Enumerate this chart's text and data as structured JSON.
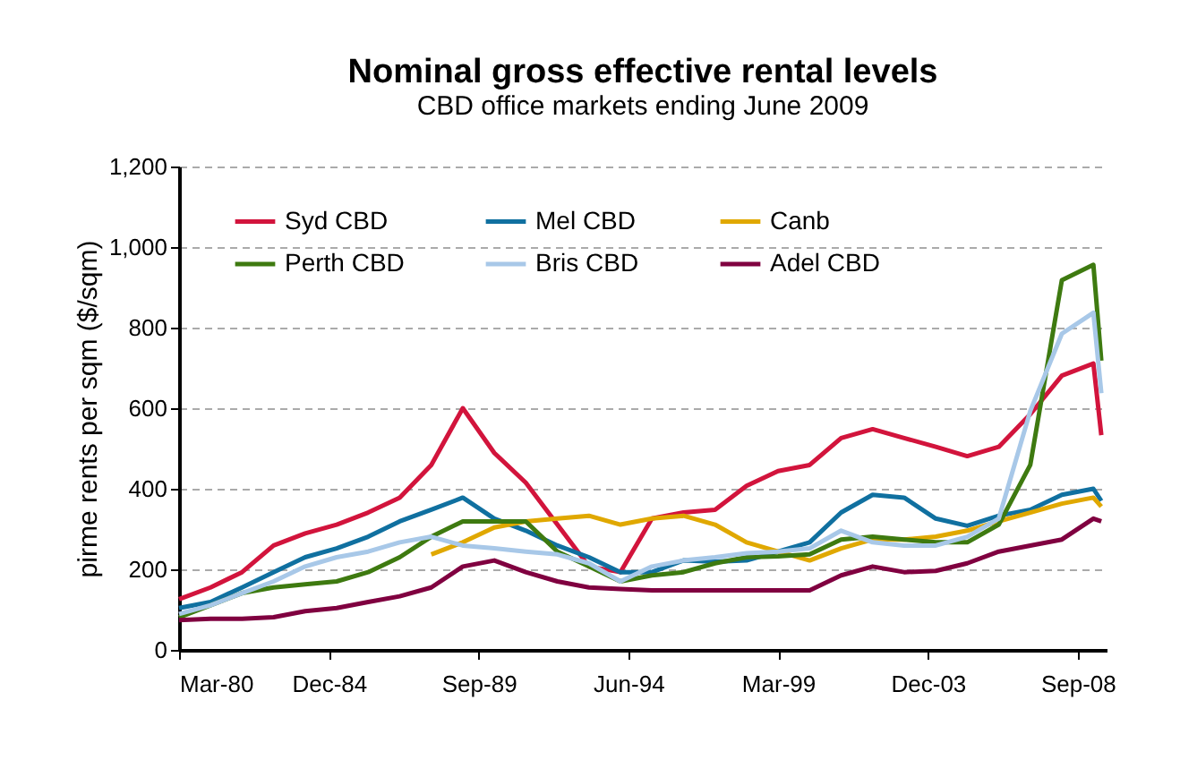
{
  "chart_data": {
    "type": "line",
    "title": "Nominal gross effective  rental levels",
    "subtitle": "CBD office markets ending June 2009",
    "ylabel": "pirme rents per sqm ($/sqm)",
    "x": [
      "1980-03",
      "1981-03",
      "1982-03",
      "1983-03",
      "1984-03",
      "1985-03",
      "1986-03",
      "1987-03",
      "1988-03",
      "1989-03",
      "1990-03",
      "1991-03",
      "1992-03",
      "1993-03",
      "1994-03",
      "1995-03",
      "1996-03",
      "1997-03",
      "1998-03",
      "1999-03",
      "2000-03",
      "2001-03",
      "2002-03",
      "2003-03",
      "2004-03",
      "2005-03",
      "2006-03",
      "2007-03",
      "2008-03",
      "2009-03",
      "2009-06"
    ],
    "series": [
      {
        "name": "Syd CBD",
        "color": "#d2143c",
        "values": [
          126,
          155,
          193,
          259,
          289,
          311,
          341,
          378,
          459,
          600,
          489,
          415,
          311,
          207,
          193,
          326,
          341,
          348,
          407,
          444,
          459,
          526,
          548,
          526,
          504,
          481,
          504,
          585,
          681,
          711,
          533
        ]
      },
      {
        "name": "Mel CBD",
        "color": "#1070a0",
        "values": [
          104,
          119,
          155,
          193,
          230,
          252,
          281,
          319,
          348,
          378,
          326,
          296,
          259,
          230,
          193,
          193,
          222,
          219,
          222,
          244,
          267,
          341,
          385,
          378,
          326,
          308,
          333,
          348,
          385,
          400,
          370
        ]
      },
      {
        "name": "Canb",
        "color": "#e0a800",
        "values": [
          null,
          null,
          null,
          null,
          null,
          null,
          null,
          null,
          237,
          267,
          304,
          319,
          326,
          333,
          311,
          326,
          333,
          311,
          267,
          244,
          222,
          252,
          274,
          274,
          281,
          296,
          319,
          341,
          363,
          378,
          356
        ]
      },
      {
        "name": "Perth CBD",
        "color": "#3e7a10",
        "values": [
          81,
          111,
          141,
          155,
          163,
          170,
          193,
          230,
          281,
          319,
          319,
          319,
          244,
          207,
          170,
          185,
          193,
          215,
          230,
          232,
          237,
          274,
          281,
          274,
          267,
          267,
          311,
          459,
          918,
          956,
          718
        ]
      },
      {
        "name": "Bris CBD",
        "color": "#a8c8e8",
        "values": [
          89,
          111,
          141,
          170,
          207,
          230,
          244,
          267,
          281,
          259,
          252,
          244,
          237,
          215,
          170,
          207,
          222,
          230,
          240,
          244,
          252,
          296,
          267,
          259,
          259,
          281,
          326,
          593,
          785,
          837,
          637
        ]
      },
      {
        "name": "Adel CBD",
        "color": "#800040",
        "values": [
          74,
          77,
          77,
          81,
          96,
          104,
          119,
          133,
          155,
          207,
          222,
          193,
          170,
          155,
          151,
          148,
          148,
          148,
          148,
          148,
          148,
          185,
          207,
          193,
          196,
          215,
          244,
          259,
          274,
          326,
          319
        ]
      }
    ],
    "xlim": [
      "1980-03",
      "2009-08"
    ],
    "xticks": [
      {
        "value": "1980-03",
        "label": "Mar-80"
      },
      {
        "value": "1984-12",
        "label": "Dec-84"
      },
      {
        "value": "1989-09",
        "label": "Sep-89"
      },
      {
        "value": "1994-06",
        "label": "Jun-94"
      },
      {
        "value": "1999-03",
        "label": "Mar-99"
      },
      {
        "value": "2003-12",
        "label": "Dec-03"
      },
      {
        "value": "2008-09",
        "label": "Sep-08"
      }
    ],
    "ylim": [
      0,
      1200
    ],
    "yticks": [
      0,
      200,
      400,
      600,
      800,
      {
        "value": 1000,
        "label": "1,000"
      },
      {
        "value": 1200,
        "label": "1,200"
      }
    ],
    "grid": "y",
    "legend": "top",
    "line_style": "solid",
    "marker": "none"
  }
}
